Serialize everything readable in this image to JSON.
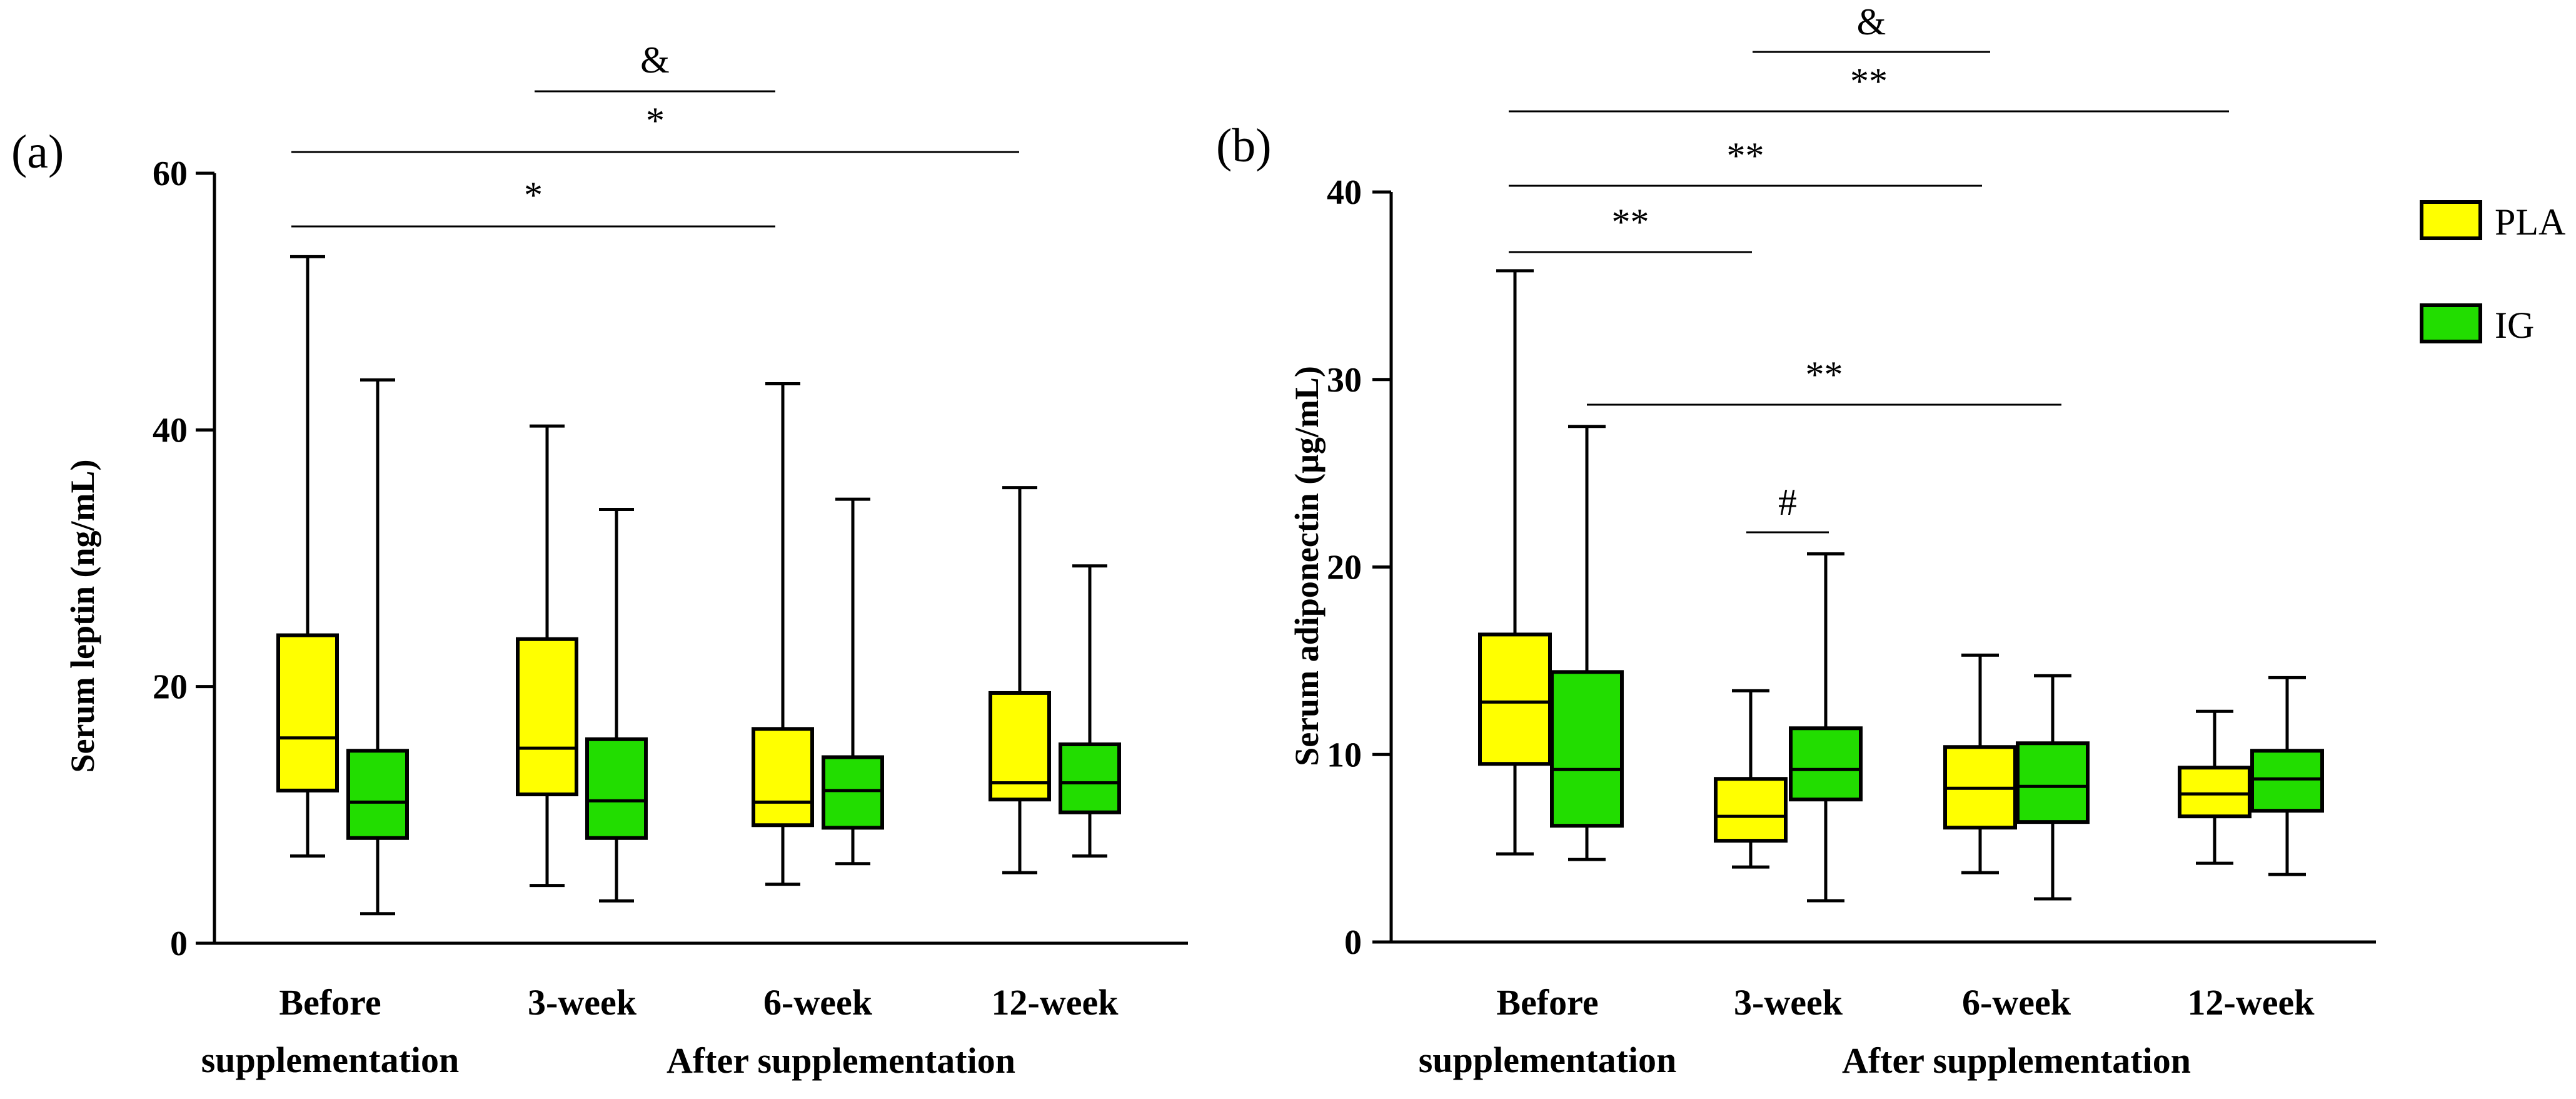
{
  "chart_data": [
    {
      "type": "box",
      "panel_label": "(a)",
      "ylabel": "Serum leptin (ng/mL)",
      "xlabel": "After supplementation",
      "ylim": [
        0,
        60
      ],
      "yticks": [
        "0",
        "20",
        "40",
        "60"
      ],
      "categories": [
        "Before supplementation",
        "3-week",
        "6-week",
        "12-week"
      ],
      "category_lines": [
        [
          "Before",
          "supplementation"
        ],
        [
          "3-week"
        ],
        [
          "6-week"
        ],
        [
          "12-week"
        ]
      ],
      "series": [
        {
          "name": "PLA",
          "color": "#FFFF00",
          "boxes": [
            {
              "min": 6.8,
              "q1": 11.9,
              "median": 16.0,
              "q3": 24.0,
              "max": 53.5
            },
            {
              "min": 4.5,
              "q1": 11.6,
              "median": 15.2,
              "q3": 23.7,
              "max": 40.3
            },
            {
              "min": 4.6,
              "q1": 9.2,
              "median": 11.0,
              "q3": 16.7,
              "max": 43.6
            },
            {
              "min": 5.5,
              "q1": 11.2,
              "median": 12.5,
              "q3": 19.5,
              "max": 35.5
            }
          ]
        },
        {
          "name": "IG",
          "color": "#22DD00",
          "boxes": [
            {
              "min": 2.3,
              "q1": 8.2,
              "median": 11.0,
              "q3": 15.0,
              "max": 43.9
            },
            {
              "min": 3.3,
              "q1": 8.2,
              "median": 11.1,
              "q3": 15.9,
              "max": 33.8
            },
            {
              "min": 6.2,
              "q1": 9.0,
              "median": 11.9,
              "q3": 14.5,
              "max": 34.6
            },
            {
              "min": 6.8,
              "q1": 10.2,
              "median": 12.5,
              "q3": 15.5,
              "max": 29.4
            }
          ]
        }
      ],
      "significance": [
        {
          "label": "&",
          "from": "3-week PLA",
          "to": "6-week PLA"
        },
        {
          "label": "*",
          "from": "Before supplementation PLA",
          "to": "12-week PLA"
        },
        {
          "label": "*",
          "from": "Before supplementation PLA",
          "to": "6-week PLA"
        }
      ]
    },
    {
      "type": "box",
      "panel_label": "(b)",
      "ylabel": "Serum adiponectin (μg/mL)",
      "xlabel": "After supplementation",
      "ylim": [
        0,
        40
      ],
      "yticks": [
        "0",
        "10",
        "20",
        "30",
        "40"
      ],
      "categories": [
        "Before supplementation",
        "3-week",
        "6-week",
        "12-week"
      ],
      "category_lines": [
        [
          "Before",
          "supplementation"
        ],
        [
          "3-week"
        ],
        [
          "6-week"
        ],
        [
          "12-week"
        ]
      ],
      "series": [
        {
          "name": "PLA",
          "color": "#FFFF00",
          "boxes": [
            {
              "min": 4.7,
              "q1": 9.5,
              "median": 12.8,
              "q3": 16.4,
              "max": 35.8
            },
            {
              "min": 4.0,
              "q1": 5.4,
              "median": 6.7,
              "q3": 8.7,
              "max": 13.4
            },
            {
              "min": 3.7,
              "q1": 6.1,
              "median": 8.2,
              "q3": 10.4,
              "max": 15.3
            },
            {
              "min": 4.2,
              "q1": 6.7,
              "median": 7.9,
              "q3": 9.3,
              "max": 12.3
            }
          ]
        },
        {
          "name": "IG",
          "color": "#22DD00",
          "boxes": [
            {
              "min": 4.4,
              "q1": 6.2,
              "median": 9.2,
              "q3": 14.4,
              "max": 27.5
            },
            {
              "min": 2.2,
              "q1": 7.6,
              "median": 9.2,
              "q3": 11.4,
              "max": 20.7
            },
            {
              "min": 2.3,
              "q1": 6.4,
              "median": 8.3,
              "q3": 10.6,
              "max": 14.2
            },
            {
              "min": 3.6,
              "q1": 7.0,
              "median": 8.7,
              "q3": 10.2,
              "max": 14.1
            }
          ]
        }
      ],
      "significance": [
        {
          "label": "&",
          "from": "3-week PLA",
          "to": "6-week PLA"
        },
        {
          "label": "**",
          "from": "Before supplementation PLA",
          "to": "12-week PLA"
        },
        {
          "label": "**",
          "from": "Before supplementation PLA",
          "to": "6-week PLA"
        },
        {
          "label": "**",
          "from": "Before supplementation PLA",
          "to": "3-week PLA"
        },
        {
          "label": "**",
          "from": "Before supplementation IG",
          "to": "6-week IG"
        },
        {
          "label": "#",
          "from": "3-week PLA",
          "to": "3-week IG"
        }
      ]
    }
  ],
  "legend": [
    {
      "label": "PLA",
      "color": "#FFFF00"
    },
    {
      "label": "IG",
      "color": "#22DD00"
    }
  ]
}
